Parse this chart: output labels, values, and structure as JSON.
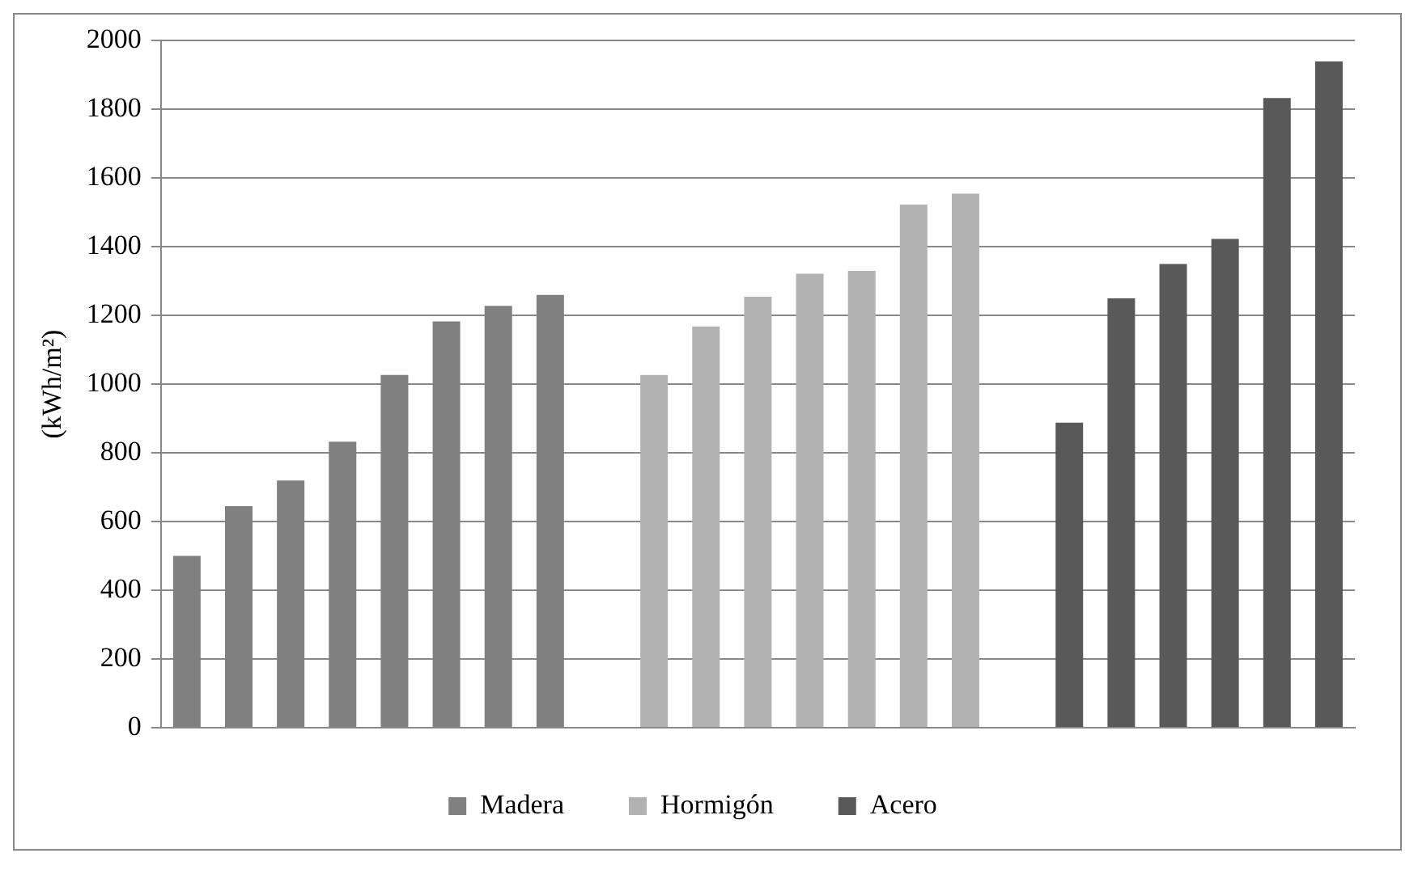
{
  "chart_data": {
    "type": "bar",
    "ylabel": "(kWh/m²)",
    "categories": [
      null,
      null,
      null,
      null,
      null,
      null,
      null,
      null,
      null,
      null,
      null,
      null,
      null,
      null,
      null,
      null,
      null,
      null,
      null,
      null,
      null,
      null,
      null
    ],
    "series": [
      {
        "name": "Madera",
        "color": "#808080",
        "values": [
          500,
          645,
          720,
          833,
          1027,
          1183,
          1228,
          1260,
          null,
          null,
          null,
          null,
          null,
          null,
          null,
          null,
          null,
          null,
          null,
          null,
          null,
          null,
          null
        ]
      },
      {
        "name": "Hormigón",
        "color": "#b2b2b2",
        "values": [
          null,
          null,
          null,
          null,
          null,
          null,
          null,
          null,
          null,
          1027,
          1168,
          1255,
          1322,
          1330,
          1523,
          1555,
          null,
          null,
          null,
          null,
          null,
          null,
          null
        ]
      },
      {
        "name": "Acero",
        "color": "#595959",
        "values": [
          null,
          null,
          null,
          null,
          null,
          null,
          null,
          null,
          null,
          null,
          null,
          null,
          null,
          null,
          null,
          null,
          null,
          888,
          1250,
          1350,
          1423,
          1833,
          1940
        ]
      }
    ],
    "ylim": [
      0,
      2000
    ],
    "yticks": [
      0,
      200,
      400,
      600,
      800,
      1000,
      1200,
      1400,
      1600,
      1800,
      2000
    ],
    "grid": "y",
    "legend": "bottom"
  }
}
